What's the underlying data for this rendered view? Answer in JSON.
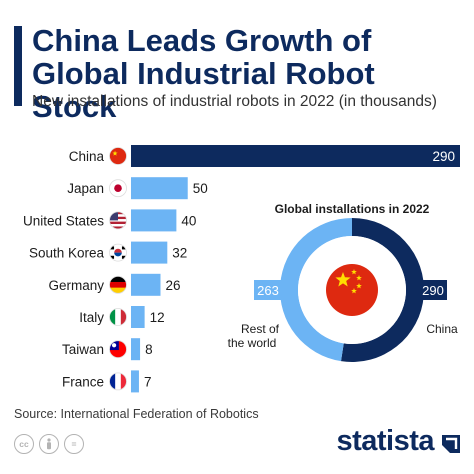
{
  "header": {
    "title": "China Leads Growth of Global Industrial Robot Stock",
    "subtitle": "New installations of industrial robots in 2022 (in thousands)"
  },
  "chart_data": [
    {
      "type": "bar",
      "orientation": "horizontal",
      "categories": [
        "China",
        "Japan",
        "United States",
        "South Korea",
        "Germany",
        "Italy",
        "Taiwan",
        "France"
      ],
      "values": [
        290,
        50,
        40,
        32,
        26,
        12,
        8,
        7
      ],
      "flags": [
        "china-flag-icon",
        "japan-flag-icon",
        "us-flag-icon",
        "south-korea-flag-icon",
        "germany-flag-icon",
        "italy-flag-icon",
        "taiwan-flag-icon",
        "france-flag-icon"
      ],
      "colors": {
        "highlight": "#0d2a5e",
        "default": "#6cb4f4"
      },
      "xlim": [
        0,
        290
      ],
      "grid": false
    },
    {
      "type": "pie",
      "style": "donut",
      "title": "Global installations in 2022",
      "labels": [
        "China",
        "Rest of the world"
      ],
      "values": [
        290,
        263
      ],
      "colors": [
        "#0d2a5e",
        "#6cb4f4"
      ],
      "center_icon": "china-flag-icon"
    }
  ],
  "source": "Source: International Federation of Robotics",
  "footer": {
    "license_icons": [
      "cc-icon",
      "attribution-icon",
      "no-derivatives-icon"
    ],
    "brand": "statista"
  }
}
